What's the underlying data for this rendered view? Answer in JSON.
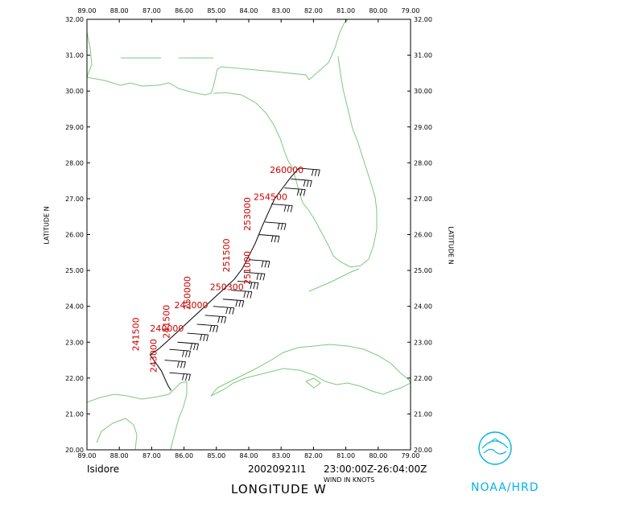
{
  "map": {
    "lon_range": [
      -89,
      -79
    ],
    "lat_range": [
      20,
      32
    ],
    "lon_ticks": [
      "89.00",
      "88.00",
      "87.00",
      "86.00",
      "85.00",
      "84.00",
      "83.00",
      "82.00",
      "81.00",
      "80.00",
      "79.00"
    ],
    "lat_ticks": [
      "20.00",
      "21.00",
      "22.00",
      "23.00",
      "24.00",
      "25.00",
      "26.00",
      "27.00",
      "28.00",
      "29.00",
      "30.00",
      "31.00",
      "32.00"
    ],
    "ylabel_left": "LATITUDE N",
    "ylabel_right": "LATITUDE N",
    "xlabel": "LONGITUDE W",
    "coast_color": "#7ec87e",
    "label_color": "#cc0000",
    "track_color": "#000000"
  },
  "flight_track": [
    [
      -82.45,
      27.85
    ],
    [
      -82.7,
      27.6
    ],
    [
      -82.95,
      27.3
    ],
    [
      -83.2,
      27.0
    ],
    [
      -83.4,
      26.6
    ],
    [
      -83.6,
      26.2
    ],
    [
      -83.8,
      25.75
    ],
    [
      -84.0,
      25.4
    ],
    [
      -84.2,
      25.05
    ],
    [
      -84.45,
      24.75
    ],
    [
      -84.75,
      24.5
    ],
    [
      -85.05,
      24.25
    ],
    [
      -85.35,
      24.0
    ],
    [
      -85.65,
      23.75
    ],
    [
      -85.95,
      23.5
    ],
    [
      -86.25,
      23.25
    ],
    [
      -86.55,
      23.0
    ],
    [
      -86.8,
      22.8
    ],
    [
      -87.05,
      22.65
    ],
    [
      -86.7,
      22.2
    ],
    [
      -86.5,
      21.8
    ],
    [
      -86.4,
      21.65
    ]
  ],
  "wind_barbs": [
    {
      "lon": -82.45,
      "lat": 27.85
    },
    {
      "lon": -82.7,
      "lat": 27.55
    },
    {
      "lon": -82.9,
      "lat": 27.3
    },
    {
      "lon": -83.3,
      "lat": 26.85
    },
    {
      "lon": -83.5,
      "lat": 26.35
    },
    {
      "lon": -83.7,
      "lat": 26.0
    },
    {
      "lon": -84.0,
      "lat": 25.3
    },
    {
      "lon": -84.15,
      "lat": 24.95
    },
    {
      "lon": -84.35,
      "lat": 24.7
    },
    {
      "lon": -84.55,
      "lat": 24.45
    },
    {
      "lon": -84.8,
      "lat": 24.2
    },
    {
      "lon": -85.1,
      "lat": 24.0
    },
    {
      "lon": -85.35,
      "lat": 23.75
    },
    {
      "lon": -85.6,
      "lat": 23.5
    },
    {
      "lon": -85.9,
      "lat": 23.25
    },
    {
      "lon": -86.2,
      "lat": 23.0
    },
    {
      "lon": -86.45,
      "lat": 22.8
    },
    {
      "lon": -86.6,
      "lat": 22.5
    },
    {
      "lon": -86.45,
      "lat": 22.15
    }
  ],
  "time_labels": [
    {
      "text": "260000",
      "lon": -83.35,
      "lat": 27.72,
      "rot": 0
    },
    {
      "text": "254500",
      "lon": -83.85,
      "lat": 26.96,
      "rot": 0
    },
    {
      "text": "253000",
      "lon": -83.95,
      "lat": 26.1,
      "rot": -90
    },
    {
      "text": "251500",
      "lon": -84.6,
      "lat": 24.95,
      "rot": -90
    },
    {
      "text": "251000",
      "lon": -83.95,
      "lat": 24.6,
      "rot": -90
    },
    {
      "text": "250300",
      "lon": -85.2,
      "lat": 24.45,
      "rot": 0
    },
    {
      "text": "250000",
      "lon": -85.8,
      "lat": 23.9,
      "rot": -90
    },
    {
      "text": "243000",
      "lon": -86.3,
      "lat": 23.95,
      "rot": 0
    },
    {
      "text": "241500",
      "lon": -86.45,
      "lat": 23.1,
      "rot": -90
    },
    {
      "text": "240000",
      "lon": -87.05,
      "lat": 23.3,
      "rot": 0
    },
    {
      "text": "241500",
      "lon": -87.4,
      "lat": 22.75,
      "rot": -90
    },
    {
      "text": "243000",
      "lon": -86.85,
      "lat": 22.15,
      "rot": -90
    }
  ],
  "footer": {
    "storm_name": "Isidore",
    "date_id": "20020921I1",
    "time_range": "23:00:00Z-26:04:00Z",
    "wind_units": "WIND IN KNOTS",
    "xlabel": "LONGITUDE W",
    "agency": "NOAA/HRD"
  },
  "logo": {
    "icon": "noaa-logo",
    "color": "#00b4e0"
  }
}
